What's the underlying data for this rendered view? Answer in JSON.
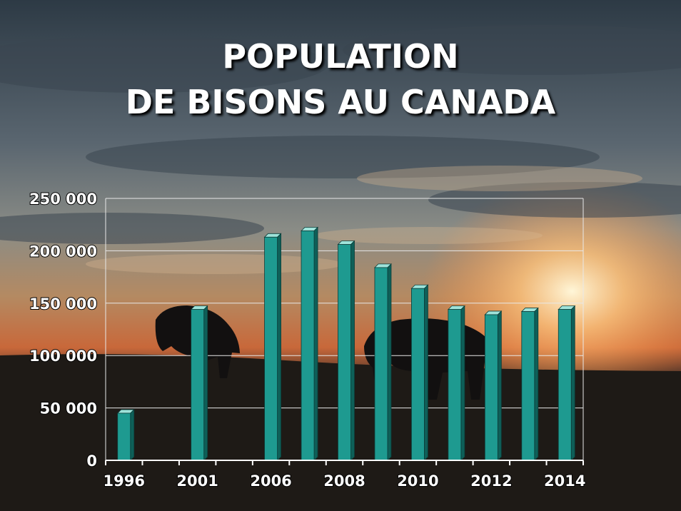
{
  "title": {
    "line1": "POPULATION",
    "line2": "DE BISONS AU CANADA"
  },
  "chart_data": {
    "type": "bar",
    "title": "POPULATION DE BISONS AU CANADA",
    "xlabel": "",
    "ylabel": "",
    "ylim": [
      0,
      250000
    ],
    "y_ticks": [
      "0",
      "50 000",
      "100 000",
      "150 000",
      "200 000",
      "250 000"
    ],
    "y_tick_values": [
      0,
      50000,
      100000,
      150000,
      200000,
      250000
    ],
    "categories": [
      "1996",
      "2001",
      "2006",
      "2007",
      "2008",
      "2009",
      "2010",
      "2011",
      "2012",
      "2013",
      "2014"
    ],
    "x_tick_labels": [
      "1996",
      "2001",
      "2006",
      "2008",
      "2010",
      "2012",
      "2014"
    ],
    "values": [
      45000,
      144000,
      213000,
      219000,
      206000,
      184000,
      164000,
      144000,
      139000,
      142000,
      144000
    ],
    "bar_color": "#1e9a90",
    "grid": true,
    "legend": "none"
  }
}
